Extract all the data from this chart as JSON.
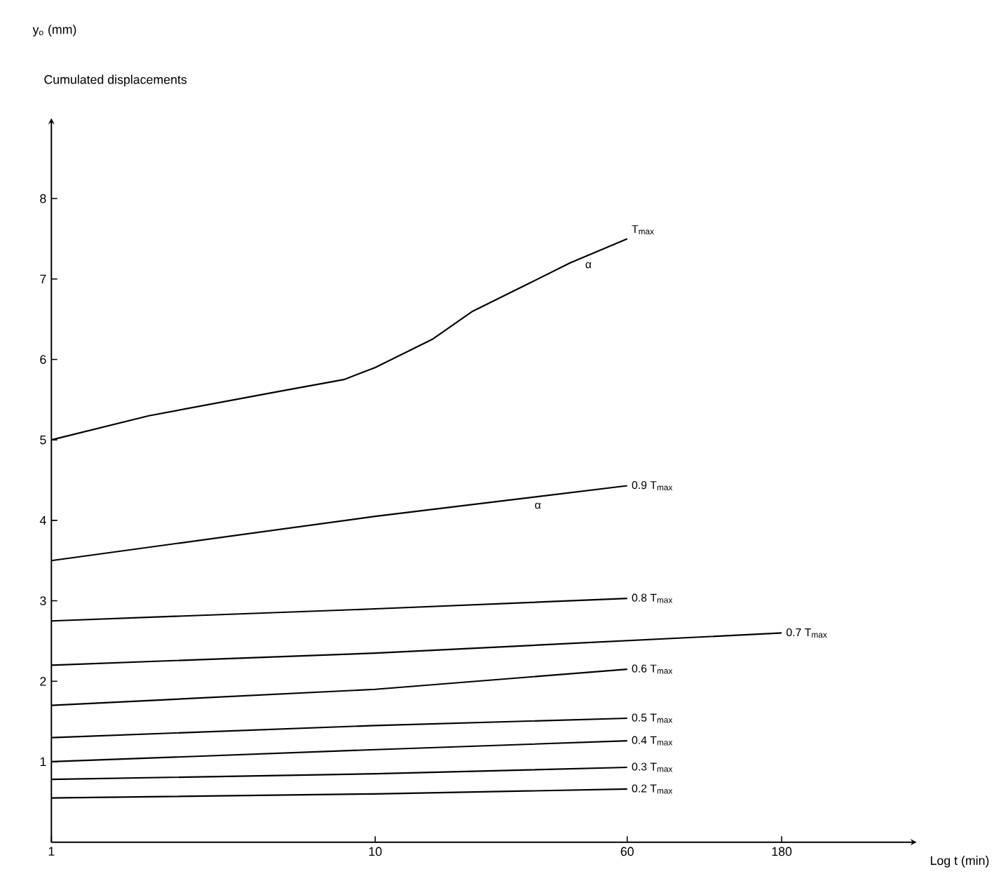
{
  "chart_data": {
    "type": "line",
    "subtitle": "Cumulated displacements",
    "xlabel": "Log t (min)",
    "log": "x",
    "xlim": [
      1,
      470
    ],
    "ylim": [
      0,
      9
    ],
    "xticks": [
      1,
      10,
      60,
      180
    ],
    "yticks": [
      1,
      2,
      3,
      4,
      5,
      6,
      7,
      8
    ],
    "grid": false,
    "legend": false,
    "marker": "none",
    "line_style": "solid",
    "series": [
      {
        "name": "T$_{max}$",
        "color": "#000000",
        "x": [
          1,
          2,
          5,
          8,
          10,
          15,
          20,
          30,
          40,
          60
        ],
        "values": [
          5.0,
          5.3,
          5.6,
          5.75,
          5.9,
          6.25,
          6.6,
          6.95,
          7.2,
          7.5
        ]
      },
      {
        "name": "0.9 T$_{max}$",
        "color": "#000000",
        "x": [
          1,
          10,
          60
        ],
        "values": [
          3.5,
          4.05,
          4.43
        ]
      },
      {
        "name": "0.8 T$_{max}$",
        "color": "#000000",
        "x": [
          1,
          10,
          60
        ],
        "values": [
          2.75,
          2.9,
          3.03
        ]
      },
      {
        "name": "0.7 T$_{max}$",
        "color": "#000000",
        "x": [
          1,
          10,
          180
        ],
        "values": [
          2.2,
          2.35,
          2.6
        ]
      },
      {
        "name": "0.6 T$_{max}$",
        "color": "#000000",
        "x": [
          1,
          10,
          60
        ],
        "values": [
          1.7,
          1.9,
          2.15
        ]
      },
      {
        "name": "0.5 T$_{max}$",
        "color": "#000000",
        "x": [
          1,
          10,
          60
        ],
        "values": [
          1.3,
          1.45,
          1.54
        ]
      },
      {
        "name": "0.4 T$_{max}$",
        "color": "#000000",
        "x": [
          1,
          10,
          60
        ],
        "values": [
          1.0,
          1.15,
          1.26
        ]
      },
      {
        "name": "0.3 T$_{max}$",
        "color": "#000000",
        "x": [
          1,
          10,
          60
        ],
        "values": [
          0.78,
          0.85,
          0.93
        ]
      },
      {
        "name": "0.2 T$_{max}$",
        "color": "#000000",
        "x": [
          1,
          10,
          60
        ],
        "values": [
          0.55,
          0.6,
          0.66
        ]
      }
    ],
    "annotations": [
      "y$_{o}$ (mm)",
      {
        "text": "α",
        "x": 43,
        "y": 7.27
      },
      {
        "text": "α",
        "x": 30,
        "y": 4.28
      }
    ]
  }
}
